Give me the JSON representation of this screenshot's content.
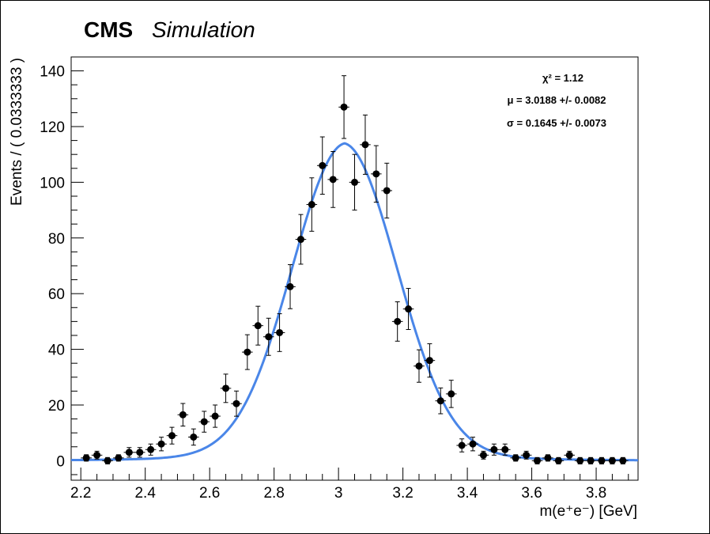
{
  "header": {
    "experiment": "CMS",
    "label": "Simulation"
  },
  "stats": {
    "chi2": "χ² = 1.12",
    "mu": "μ = 3.0188 +/- 0.0082",
    "sigma": "σ = 0.1645 +/- 0.0073"
  },
  "colors": {
    "fit": "#4a86e8",
    "points": "#000000"
  },
  "chart_data": {
    "type": "scatter",
    "xlabel": "m(e⁺e⁻) [GeV]",
    "ylabel": "Events / ( 0.0333333 )",
    "xlim": [
      2.17,
      3.93
    ],
    "ylim": [
      -7,
      145
    ],
    "bin_width": 0.0333333,
    "x_ticks": [
      2.2,
      2.4,
      2.6,
      2.8,
      3.0,
      3.2,
      3.4,
      3.6,
      3.8
    ],
    "x_tick_labels": [
      "2.2",
      "2.4",
      "2.6",
      "2.8",
      "3",
      "3.2",
      "3.4",
      "3.6",
      "3.8"
    ],
    "y_ticks": [
      0,
      20,
      40,
      60,
      80,
      100,
      120,
      140
    ],
    "y_tick_labels": [
      "0",
      "20",
      "40",
      "60",
      "80",
      "100",
      "120",
      "140"
    ],
    "series": [
      {
        "type": "points_with_errors",
        "x": [
          2.217,
          2.25,
          2.283,
          2.317,
          2.35,
          2.383,
          2.417,
          2.45,
          2.483,
          2.517,
          2.55,
          2.583,
          2.617,
          2.65,
          2.683,
          2.717,
          2.75,
          2.783,
          2.817,
          2.85,
          2.883,
          2.917,
          2.95,
          2.983,
          3.017,
          3.05,
          3.083,
          3.117,
          3.15,
          3.183,
          3.217,
          3.25,
          3.283,
          3.317,
          3.35,
          3.383,
          3.417,
          3.45,
          3.483,
          3.517,
          3.55,
          3.583,
          3.617,
          3.65,
          3.683,
          3.717,
          3.75,
          3.783,
          3.817,
          3.85,
          3.883
        ],
        "y": [
          1,
          2,
          0,
          1,
          3,
          3,
          4,
          6,
          9,
          16.5,
          8.5,
          14,
          16,
          26,
          20.5,
          39,
          48.5,
          44.5,
          46,
          62.5,
          79.5,
          92,
          106,
          101,
          127,
          100,
          113.5,
          103,
          97,
          50,
          54.5,
          34,
          36,
          21.5,
          24,
          5.5,
          6,
          2,
          4,
          4,
          1,
          2,
          0,
          1,
          0,
          2,
          0,
          0,
          0,
          0,
          0
        ]
      },
      {
        "type": "fit_curve",
        "model": "gaussian_plus_tails",
        "mu": 3.0188,
        "sigma": 0.1645
      }
    ]
  }
}
